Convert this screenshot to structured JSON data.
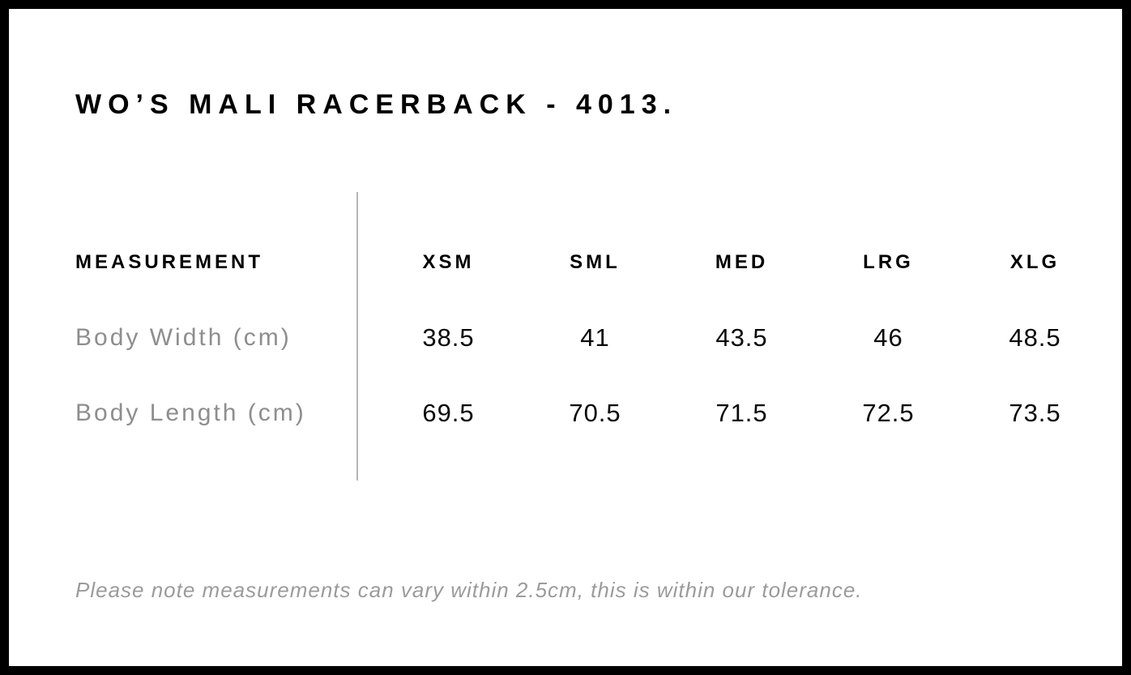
{
  "page": {
    "title": "WO’S MALI RACERBACK - 4013."
  },
  "colors": {
    "background": "#ffffff",
    "frame_border": "#000000",
    "text_primary": "#000000",
    "text_muted": "#8e8e8e",
    "divider": "#b5b5b5"
  },
  "table": {
    "headers": [
      "MEASUREMENT",
      "XSM",
      "SML",
      "MED",
      "LRG",
      "XLG"
    ],
    "rows": [
      {
        "label": "Body Width (cm)",
        "values": [
          "38.5",
          "41",
          "43.5",
          "46",
          "48.5"
        ]
      },
      {
        "label": "Body Length (cm)",
        "values": [
          "69.5",
          "70.5",
          "71.5",
          "72.5",
          "73.5"
        ]
      }
    ]
  },
  "note": "Please note measurements can vary within 2.5cm, this is within our tolerance.",
  "chart_data": {
    "type": "table",
    "title": "WO’S MALI RACERBACK - 4013.",
    "columns": [
      "MEASUREMENT",
      "XSM",
      "SML",
      "MED",
      "LRG",
      "XLG"
    ],
    "rows": [
      [
        "Body Width (cm)",
        38.5,
        41,
        43.5,
        46,
        48.5
      ],
      [
        "Body Length (cm)",
        69.5,
        70.5,
        71.5,
        72.5,
        73.5
      ]
    ],
    "footnote": "Please note measurements can vary within 2.5cm, this is within our tolerance."
  }
}
